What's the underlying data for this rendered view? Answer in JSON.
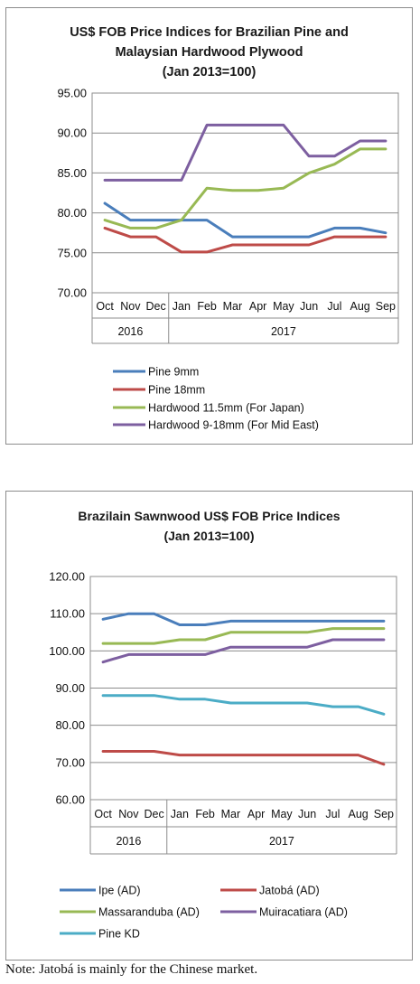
{
  "chart_data": [
    {
      "type": "line",
      "title_lines": [
        "US$ FOB Price Indices for Brazilian Pine and",
        "Malaysian Hardwood Plywood",
        "(Jan 2013=100)"
      ],
      "categories": [
        "Oct",
        "Nov",
        "Dec",
        "Jan",
        "Feb",
        "Mar",
        "Apr",
        "May",
        "Jun",
        "Jul",
        "Aug",
        "Sep"
      ],
      "year_groups": [
        {
          "label": "2016",
          "span": [
            0,
            2
          ]
        },
        {
          "label": "2017",
          "span": [
            3,
            11
          ]
        }
      ],
      "ylim": [
        70,
        95
      ],
      "yticks": [
        "70.00",
        "75.00",
        "80.00",
        "85.00",
        "90.00",
        "95.00"
      ],
      "ytick_values": [
        70,
        75,
        80,
        85,
        90,
        95
      ],
      "grid": true,
      "legend_position": "bottom",
      "series": [
        {
          "name": "Pine 9mm",
          "color": "#4a7ebb",
          "values": [
            81.2,
            79.1,
            79.1,
            79.1,
            79.1,
            77.0,
            77.0,
            77.0,
            77.0,
            78.1,
            78.1,
            77.5
          ]
        },
        {
          "name": "Pine 18mm",
          "color": "#be4b48",
          "values": [
            78.1,
            77.0,
            77.0,
            75.1,
            75.1,
            76.0,
            76.0,
            76.0,
            76.0,
            77.0,
            77.0,
            77.0
          ]
        },
        {
          "name": "Hardwood 11.5mm (For Japan)",
          "color": "#98b954",
          "values": [
            79.1,
            78.1,
            78.1,
            79.1,
            83.1,
            82.8,
            82.8,
            83.1,
            85.0,
            86.1,
            88.0,
            88.0
          ]
        },
        {
          "name": "Hardwood 9-18mm (For Mid East)",
          "color": "#7d5fa0",
          "values": [
            84.1,
            84.1,
            84.1,
            84.1,
            91.0,
            91.0,
            91.0,
            91.0,
            87.1,
            87.1,
            89.0,
            89.0
          ]
        }
      ]
    },
    {
      "type": "line",
      "title_lines": [
        "Brazilain Sawnwood US$ FOB Price Indices",
        "(Jan 2013=100)"
      ],
      "categories": [
        "Oct",
        "Nov",
        "Dec",
        "Jan",
        "Feb",
        "Mar",
        "Apr",
        "May",
        "Jun",
        "Jul",
        "Aug",
        "Sep"
      ],
      "year_groups": [
        {
          "label": "2016",
          "span": [
            0,
            2
          ]
        },
        {
          "label": "2017",
          "span": [
            3,
            11
          ]
        }
      ],
      "ylim": [
        60,
        120
      ],
      "yticks": [
        "60.00",
        "70.00",
        "80.00",
        "90.00",
        "100.00",
        "110.00",
        "120.00"
      ],
      "ytick_values": [
        60,
        70,
        80,
        90,
        100,
        110,
        120
      ],
      "grid": true,
      "legend_position": "bottom",
      "series": [
        {
          "name": "Ipe (AD)",
          "color": "#4a7ebb",
          "values": [
            108.5,
            110,
            110,
            107,
            107,
            108,
            108,
            108,
            108,
            108,
            108,
            108
          ]
        },
        {
          "name": "Jatobá (AD)",
          "color": "#be4b48",
          "values": [
            73,
            73,
            73,
            72,
            72,
            72,
            72,
            72,
            72,
            72,
            72,
            69.5
          ]
        },
        {
          "name": "Massaranduba (AD)",
          "color": "#98b954",
          "values": [
            102,
            102,
            102,
            103,
            103,
            105,
            105,
            105,
            105,
            106,
            106,
            106
          ]
        },
        {
          "name": "Muiracatiara (AD)",
          "color": "#7d5fa0",
          "values": [
            97,
            99,
            99,
            99,
            99,
            101,
            101,
            101,
            101,
            103,
            103,
            103
          ]
        },
        {
          "name": "Pine KD",
          "color": "#4bacc6",
          "values": [
            88,
            88,
            88,
            87,
            87,
            86,
            86,
            86,
            86,
            85,
            85,
            83
          ]
        }
      ]
    }
  ],
  "note": "Note: Jatobá is mainly for the Chinese market."
}
